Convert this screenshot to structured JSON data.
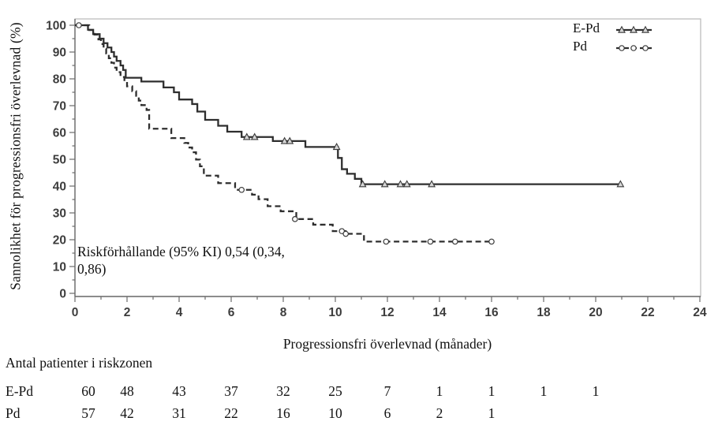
{
  "figure": {
    "y_axis_label": "Sannolikhet för progressionsfri överlevnad (%)",
    "x_axis_label": "Progressionsfri överlevnad (månader)",
    "annotation": {
      "line1": "Riskförhållande (95% KI) 0,54 (0,34,",
      "line2": "0,86)",
      "full_text": "Riskförhållande (95% KI) 0,54 (0,34, 0,86)"
    }
  },
  "risk_table": {
    "title": "Antal patienter i riskzonen",
    "time_points": [
      0,
      2,
      4,
      6,
      8,
      10,
      12,
      14,
      16,
      18,
      20
    ],
    "rows": [
      {
        "label": "E-Pd",
        "values": [
          60,
          48,
          43,
          37,
          32,
          25,
          7,
          1,
          1,
          1,
          1
        ]
      },
      {
        "label": "Pd",
        "values": [
          57,
          42,
          31,
          22,
          16,
          10,
          6,
          2,
          1
        ]
      }
    ]
  },
  "chart_data": {
    "type": "line",
    "subtype": "kaplan-meier-step",
    "title": "",
    "xlabel": "Progressionsfri överlevnad (månader)",
    "ylabel": "Sannolikhet för progressionsfri överlevnad (%)",
    "xlim": [
      0,
      24
    ],
    "ylim": [
      0,
      100
    ],
    "x_major_tick_step": 2,
    "x_minor_tick_step": 1,
    "y_major_tick_step": 10,
    "y_minor_tick_step": 5,
    "grid": false,
    "legend_position": "top-right-inside",
    "colors": {
      "line": "#2e2e2e",
      "tick_text": "#3d3d3d",
      "axis": "#6b6b6b",
      "frame": "#b8b8b8"
    },
    "series": [
      {
        "name": "E-Pd",
        "line": "solid",
        "marker": "triangle",
        "steps": [
          [
            0,
            100
          ],
          [
            0.5,
            98.3
          ],
          [
            0.7,
            96.7
          ],
          [
            0.95,
            95
          ],
          [
            1.1,
            93.3
          ],
          [
            1.25,
            91.7
          ],
          [
            1.4,
            90
          ],
          [
            1.5,
            88.3
          ],
          [
            1.6,
            86.7
          ],
          [
            1.75,
            85
          ],
          [
            1.85,
            83.3
          ],
          [
            1.95,
            80.4
          ],
          [
            2.55,
            79
          ],
          [
            3.4,
            76.8
          ],
          [
            3.8,
            75
          ],
          [
            4.0,
            72.3
          ],
          [
            4.5,
            70.6
          ],
          [
            4.7,
            67.8
          ],
          [
            5.0,
            64.7
          ],
          [
            5.5,
            62.5
          ],
          [
            5.85,
            60.3
          ],
          [
            6.4,
            58.3
          ],
          [
            7.6,
            56.8
          ],
          [
            8.85,
            54.6
          ],
          [
            10.1,
            50.5
          ],
          [
            10.25,
            46.3
          ],
          [
            10.45,
            44.6
          ],
          [
            10.75,
            42.7
          ],
          [
            11.0,
            40.7
          ]
        ],
        "end_time": 21.0,
        "censor_marks": [
          [
            6.6,
            58.3
          ],
          [
            6.9,
            58.3
          ],
          [
            8.05,
            56.8
          ],
          [
            8.25,
            56.8
          ],
          [
            10.05,
            54.6
          ],
          [
            11.05,
            40.7
          ],
          [
            11.9,
            40.7
          ],
          [
            12.5,
            40.7
          ],
          [
            12.75,
            40.7
          ],
          [
            13.7,
            40.7
          ],
          [
            20.95,
            40.7
          ]
        ]
      },
      {
        "name": "Pd",
        "line": "dashed",
        "marker": "circle",
        "steps": [
          [
            0,
            100
          ],
          [
            0.55,
            98.2
          ],
          [
            0.75,
            96.5
          ],
          [
            0.9,
            94.7
          ],
          [
            1.0,
            93
          ],
          [
            1.1,
            91.2
          ],
          [
            1.2,
            89.5
          ],
          [
            1.3,
            87.7
          ],
          [
            1.4,
            86
          ],
          [
            1.5,
            84.2
          ],
          [
            1.6,
            82.5
          ],
          [
            1.75,
            80.7
          ],
          [
            1.9,
            78.9
          ],
          [
            2.0,
            77.2
          ],
          [
            2.2,
            75.4
          ],
          [
            2.35,
            73.7
          ],
          [
            2.45,
            71.9
          ],
          [
            2.55,
            70.2
          ],
          [
            2.75,
            68.4
          ],
          [
            2.85,
            61.4
          ],
          [
            3.7,
            57.9
          ],
          [
            4.2,
            56.1
          ],
          [
            4.35,
            54.4
          ],
          [
            4.5,
            52.6
          ],
          [
            4.65,
            49.9
          ],
          [
            4.8,
            47.4
          ],
          [
            4.95,
            43.9
          ],
          [
            5.5,
            41.1
          ],
          [
            6.15,
            38.6
          ],
          [
            6.8,
            36.8
          ],
          [
            7.05,
            35.1
          ],
          [
            7.4,
            32.5
          ],
          [
            7.9,
            30.6
          ],
          [
            8.5,
            27.7
          ],
          [
            9.15,
            25.6
          ],
          [
            9.9,
            23.2
          ],
          [
            10.4,
            22.2
          ],
          [
            11.1,
            19.3
          ]
        ],
        "end_time": 16.0,
        "censor_marks": [
          [
            0.15,
            100
          ],
          [
            6.4,
            38.6
          ],
          [
            8.45,
            27.7
          ],
          [
            10.25,
            23.2
          ],
          [
            10.4,
            22.2
          ],
          [
            11.95,
            19.3
          ],
          [
            13.65,
            19.3
          ],
          [
            14.6,
            19.3
          ],
          [
            16.0,
            19.3
          ]
        ]
      }
    ],
    "annotation": "Riskförhållande (95% KI) 0,54 (0,34, 0,86)"
  }
}
